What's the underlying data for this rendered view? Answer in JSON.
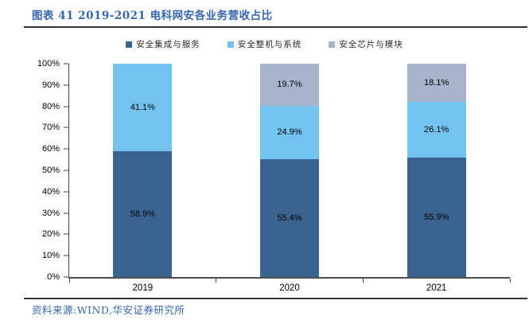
{
  "title": "图表 41 2019-2021 电科网安各业务营收占比",
  "source": "资料来源:WIND,华安证券研究所",
  "colors": {
    "title_blue": "#3566AF",
    "divider": "#333333",
    "axis": "#404040",
    "label_text": "#000000"
  },
  "chart_data": {
    "type": "bar",
    "stacked": true,
    "title": "图表 41 2019-2021 电科网安各业务营收占比",
    "categories": [
      "2019",
      "2020",
      "2021"
    ],
    "series": [
      {
        "name": "安全集成与服务",
        "color": "#3A648F",
        "values": [
          58.9,
          55.4,
          55.9
        ],
        "labels": [
          "58.9%",
          "55.4%",
          "55.9%"
        ]
      },
      {
        "name": "安全整机与系统",
        "color": "#74C2F0",
        "values": [
          41.1,
          24.9,
          26.1
        ],
        "labels": [
          "41.1%",
          "24.9%",
          "26.1%"
        ]
      },
      {
        "name": "安全芯片与模块",
        "color": "#A7B4CB",
        "values": [
          0,
          19.7,
          18.1
        ],
        "labels": [
          null,
          "19.7%",
          "18.1%"
        ]
      }
    ],
    "xlabel": "",
    "ylabel": "",
    "ylim": [
      0,
      100
    ],
    "y_ticks": [
      "0%",
      "10%",
      "20%",
      "30%",
      "40%",
      "50%",
      "60%",
      "70%",
      "80%",
      "90%",
      "100%"
    ],
    "grid": false,
    "legend_position": "top",
    "value_labels": "inside-center"
  }
}
